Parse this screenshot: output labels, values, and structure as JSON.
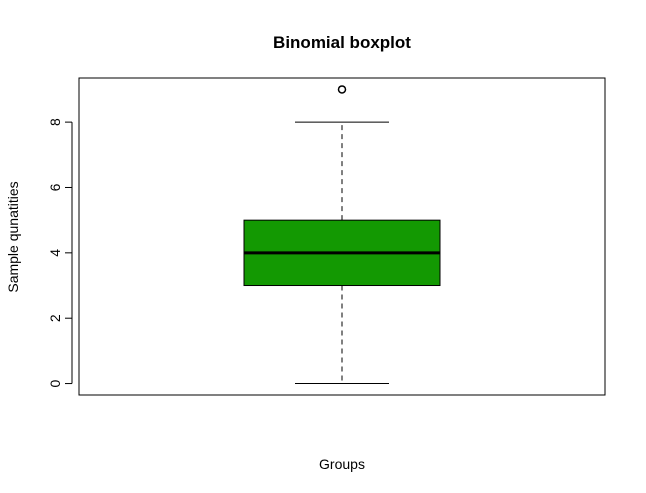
{
  "chart_data": {
    "type": "boxplot",
    "title": "Binomial boxplot",
    "xlabel": "Groups",
    "ylabel": "Sample qunatities",
    "ylim": [
      -0.35,
      9.35
    ],
    "yticks": [
      0,
      2,
      4,
      6,
      8
    ],
    "grid": false,
    "legend": "none",
    "series": [
      {
        "min": 0,
        "q1": 3,
        "median": 4,
        "q3": 5,
        "max": 8,
        "outliers": [
          9
        ],
        "fill": "#139902"
      }
    ]
  }
}
